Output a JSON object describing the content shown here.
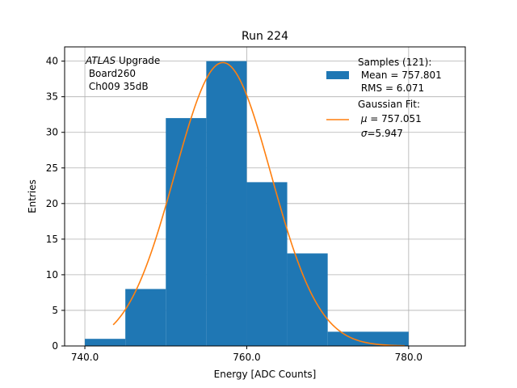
{
  "chart_data": {
    "type": "bar",
    "title": "Run 224",
    "xlabel": "Energy [ADC Counts]",
    "ylabel": "Entries",
    "xlim": [
      737.5,
      787.0
    ],
    "ylim": [
      0,
      42
    ],
    "grid": true,
    "x_ticks": [
      740.0,
      760.0,
      780.0
    ],
    "x_tick_labels": [
      "740.0",
      "760.0",
      "780.0"
    ],
    "y_ticks": [
      0,
      5,
      10,
      15,
      20,
      25,
      30,
      35,
      40
    ],
    "y_tick_labels": [
      "0",
      "5",
      "10",
      "15",
      "20",
      "25",
      "30",
      "35",
      "40"
    ],
    "bins": [
      {
        "left": 740,
        "right": 745,
        "value": 1
      },
      {
        "left": 745,
        "right": 750,
        "value": 8
      },
      {
        "left": 750,
        "right": 755,
        "value": 32
      },
      {
        "left": 755,
        "right": 760,
        "value": 40
      },
      {
        "left": 760,
        "right": 765,
        "value": 23
      },
      {
        "left": 765,
        "right": 770,
        "value": 13
      },
      {
        "left": 770,
        "right": 780,
        "value": 2
      }
    ],
    "fit": {
      "type": "gaussian",
      "mu": 757.051,
      "sigma": 5.947,
      "amplitude": 39.8,
      "x_range": [
        743.5,
        779.5
      ]
    },
    "colors": {
      "bars": "#1f77b4",
      "fit": "#ff7f0e",
      "grid": "#b0b0b0"
    },
    "annotation": {
      "line1_italic": "ATLAS",
      "line1_rest": " Upgrade",
      "line2": " Board260",
      "line3": " Ch009 35dB"
    },
    "legend": {
      "position": "upper-right",
      "samples_lines": [
        "Samples (121):",
        " Mean = 757.801",
        " RMS = 6.071"
      ],
      "fit_lines": [
        "Gaussian Fit:",
        " μ = 757.051",
        " σ=5.947"
      ],
      "fit_mu_symbol": "μ",
      "fit_mu_rest": " = 757.051",
      "fit_sigma_symbol": "σ",
      "fit_sigma_rest": "=5.947"
    }
  }
}
